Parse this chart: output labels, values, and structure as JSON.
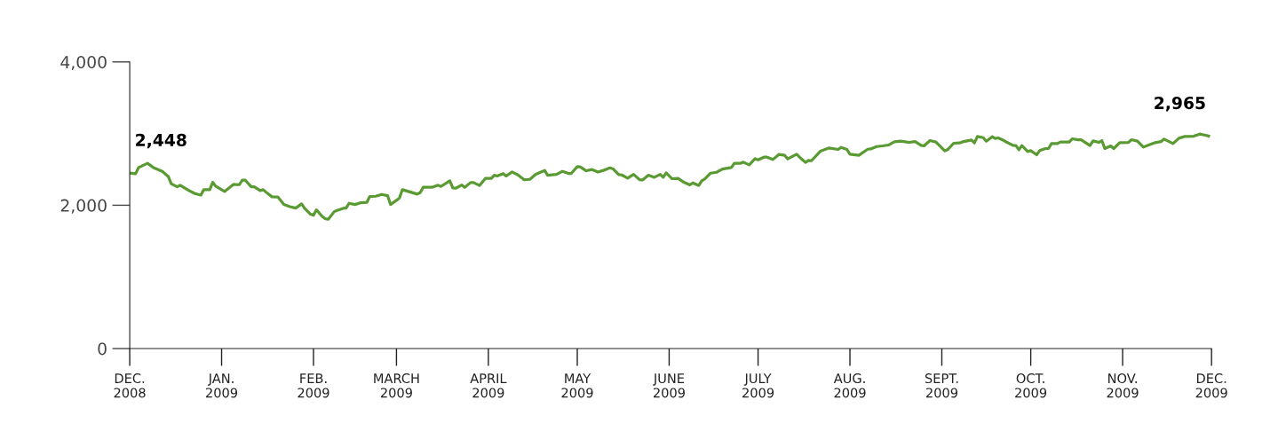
{
  "chart_data": {
    "type": "line",
    "x": [
      "2008-12-01",
      "2008-12-03",
      "2008-12-04",
      "2008-12-07",
      "2008-12-09",
      "2008-12-12",
      "2008-12-14",
      "2008-12-15",
      "2008-12-17",
      "2008-12-18",
      "2008-12-21",
      "2008-12-23",
      "2008-12-25",
      "2008-12-26",
      "2008-12-28",
      "2008-12-29",
      "2008-12-30",
      "2009-01-02",
      "2009-01-05",
      "2009-01-07",
      "2009-01-08",
      "2009-01-09",
      "2009-01-11",
      "2009-01-12",
      "2009-01-14",
      "2009-01-15",
      "2009-01-16",
      "2009-01-18",
      "2009-01-20",
      "2009-01-22",
      "2009-01-24",
      "2009-01-26",
      "2009-01-28",
      "2009-01-29",
      "2009-01-31",
      "2009-02-01",
      "2009-02-02",
      "2009-02-04",
      "2009-02-05",
      "2009-02-06",
      "2009-02-08",
      "2009-02-09",
      "2009-02-11",
      "2009-02-12",
      "2009-02-13",
      "2009-02-15",
      "2009-02-17",
      "2009-02-19",
      "2009-02-20",
      "2009-02-22",
      "2009-02-24",
      "2009-02-26",
      "2009-02-27",
      "2009-03-01",
      "2009-03-02",
      "2009-03-03",
      "2009-03-08",
      "2009-03-09",
      "2009-03-10",
      "2009-03-13",
      "2009-03-15",
      "2009-03-16",
      "2009-03-19",
      "2009-03-20",
      "2009-03-21",
      "2009-03-23",
      "2009-03-24",
      "2009-03-26",
      "2009-03-27",
      "2009-03-29",
      "2009-03-31",
      "2009-04-02",
      "2009-04-03",
      "2009-04-04",
      "2009-04-06",
      "2009-04-07",
      "2009-04-09",
      "2009-04-11",
      "2009-04-13",
      "2009-04-15",
      "2009-04-17",
      "2009-04-20",
      "2009-04-21",
      "2009-04-24",
      "2009-04-26",
      "2009-04-28",
      "2009-04-29",
      "2009-05-01",
      "2009-05-02",
      "2009-05-04",
      "2009-05-06",
      "2009-05-08",
      "2009-05-10",
      "2009-05-12",
      "2009-05-13",
      "2009-05-15",
      "2009-05-16",
      "2009-05-18",
      "2009-05-20",
      "2009-05-22",
      "2009-05-23",
      "2009-05-25",
      "2009-05-27",
      "2009-05-29",
      "2009-05-30",
      "2009-05-31",
      "2009-06-02",
      "2009-06-04",
      "2009-06-06",
      "2009-06-08",
      "2009-06-09",
      "2009-06-11",
      "2009-06-12",
      "2009-06-13",
      "2009-06-15",
      "2009-06-17",
      "2009-06-19",
      "2009-06-22",
      "2009-06-23",
      "2009-06-25",
      "2009-06-26",
      "2009-06-28",
      "2009-06-30",
      "2009-07-01",
      "2009-07-03",
      "2009-07-04",
      "2009-07-06",
      "2009-07-08",
      "2009-07-10",
      "2009-07-11",
      "2009-07-14",
      "2009-07-15",
      "2009-07-17",
      "2009-07-18",
      "2009-07-19",
      "2009-07-22",
      "2009-07-25",
      "2009-07-28",
      "2009-07-29",
      "2009-07-31",
      "2009-08-01",
      "2009-08-04",
      "2009-08-07",
      "2009-08-08",
      "2009-08-10",
      "2009-08-12",
      "2009-08-14",
      "2009-08-16",
      "2009-08-18",
      "2009-08-21",
      "2009-08-23",
      "2009-08-25",
      "2009-08-26",
      "2009-08-28",
      "2009-08-30",
      "2009-09-02",
      "2009-09-03",
      "2009-09-05",
      "2009-09-07",
      "2009-09-08",
      "2009-09-11",
      "2009-09-12",
      "2009-09-13",
      "2009-09-15",
      "2009-09-16",
      "2009-09-18",
      "2009-09-19",
      "2009-09-20",
      "2009-09-22",
      "2009-09-23",
      "2009-09-25",
      "2009-09-26",
      "2009-09-27",
      "2009-09-28",
      "2009-09-30",
      "2009-10-01",
      "2009-10-03",
      "2009-10-04",
      "2009-10-06",
      "2009-10-07",
      "2009-10-08",
      "2009-10-10",
      "2009-10-11",
      "2009-10-14",
      "2009-10-15",
      "2009-10-17",
      "2009-10-18",
      "2009-10-21",
      "2009-10-22",
      "2009-10-24",
      "2009-10-25",
      "2009-10-26",
      "2009-10-28",
      "2009-10-29",
      "2009-10-31",
      "2009-11-03",
      "2009-11-04",
      "2009-11-06",
      "2009-11-08",
      "2009-11-10",
      "2009-11-12",
      "2009-11-14",
      "2009-11-15",
      "2009-11-18",
      "2009-11-20",
      "2009-11-22",
      "2009-11-25",
      "2009-11-27",
      "2009-11-29",
      "2009-11-30"
    ],
    "series": [
      {
        "color": "#5a9a32",
        "values": [
          2448,
          2440,
          2526,
          2585,
          2526,
          2473,
          2402,
          2300,
          2258,
          2279,
          2204,
          2163,
          2142,
          2217,
          2217,
          2320,
          2266,
          2192,
          2291,
          2287,
          2349,
          2349,
          2258,
          2258,
          2204,
          2217,
          2183,
          2118,
          2114,
          2010,
          1981,
          1960,
          2019,
          1957,
          1874,
          1861,
          1936,
          1841,
          1812,
          1804,
          1911,
          1928,
          1957,
          1960,
          2027,
          2010,
          2035,
          2040,
          2122,
          2126,
          2151,
          2134,
          2010,
          2068,
          2101,
          2217,
          2155,
          2175,
          2250,
          2250,
          2279,
          2262,
          2341,
          2241,
          2237,
          2283,
          2250,
          2316,
          2316,
          2275,
          2374,
          2374,
          2419,
          2407,
          2440,
          2407,
          2464,
          2423,
          2357,
          2361,
          2431,
          2485,
          2419,
          2431,
          2473,
          2444,
          2444,
          2539,
          2535,
          2481,
          2498,
          2464,
          2489,
          2522,
          2510,
          2427,
          2423,
          2378,
          2431,
          2357,
          2353,
          2419,
          2390,
          2431,
          2390,
          2452,
          2370,
          2374,
          2320,
          2283,
          2312,
          2275,
          2341,
          2365,
          2448,
          2460,
          2505,
          2526,
          2585,
          2585,
          2601,
          2563,
          2650,
          2634,
          2671,
          2671,
          2638,
          2708,
          2696,
          2646,
          2712,
          2671,
          2597,
          2625,
          2621,
          2753,
          2799,
          2778,
          2807,
          2778,
          2712,
          2696,
          2782,
          2786,
          2819,
          2828,
          2840,
          2885,
          2894,
          2877,
          2889,
          2836,
          2828,
          2902,
          2882,
          2758,
          2778,
          2865,
          2869,
          2885,
          2910,
          2869,
          2960,
          2943,
          2894,
          2956,
          2931,
          2939,
          2902,
          2877,
          2836,
          2832,
          2774,
          2832,
          2749,
          2762,
          2704,
          2762,
          2791,
          2791,
          2861,
          2861,
          2882,
          2882,
          2927,
          2914,
          2914,
          2832,
          2898,
          2877,
          2902,
          2791,
          2828,
          2791,
          2873,
          2877,
          2914,
          2894,
          2811,
          2844,
          2873,
          2889,
          2923,
          2861,
          2935,
          2960,
          2963,
          2993,
          2976,
          2965
        ]
      }
    ],
    "xlim": [
      "2008-12-01",
      "2009-12-01"
    ],
    "xticks": [
      {
        "value": "2008-12-01",
        "label": "DEC.\n2008"
      },
      {
        "value": "2009-01-01",
        "label": "JAN.\n2009"
      },
      {
        "value": "2009-02-01",
        "label": "FEB.\n2009"
      },
      {
        "value": "2009-03-01",
        "label": "MARCH\n2009"
      },
      {
        "value": "2009-04-01",
        "label": "APRIL\n2009"
      },
      {
        "value": "2009-05-01",
        "label": "MAY\n2009"
      },
      {
        "value": "2009-06-01",
        "label": "JUNE\n2009"
      },
      {
        "value": "2009-07-01",
        "label": "JULY\n2009"
      },
      {
        "value": "2009-08-01",
        "label": "AUG.\n2009"
      },
      {
        "value": "2009-09-01",
        "label": "SEPT.\n2009"
      },
      {
        "value": "2009-10-01",
        "label": "OCT.\n2009"
      },
      {
        "value": "2009-11-01",
        "label": "NOV.\n2009"
      },
      {
        "value": "2009-12-01",
        "label": "DEC.\n2009"
      }
    ],
    "ylim": [
      0,
      4000
    ],
    "yticks": [
      {
        "value": 0,
        "label": "0"
      },
      {
        "value": 2000,
        "label": "2,000"
      },
      {
        "value": 4000,
        "label": "4,000"
      }
    ],
    "annotations": [
      {
        "text": "2,448",
        "x": "2008-12-01",
        "y": 2448
      },
      {
        "text": "2,965",
        "x": "2009-11-30",
        "y": 2965
      }
    ],
    "grid": false,
    "marker": "none",
    "line_style": "solid"
  }
}
